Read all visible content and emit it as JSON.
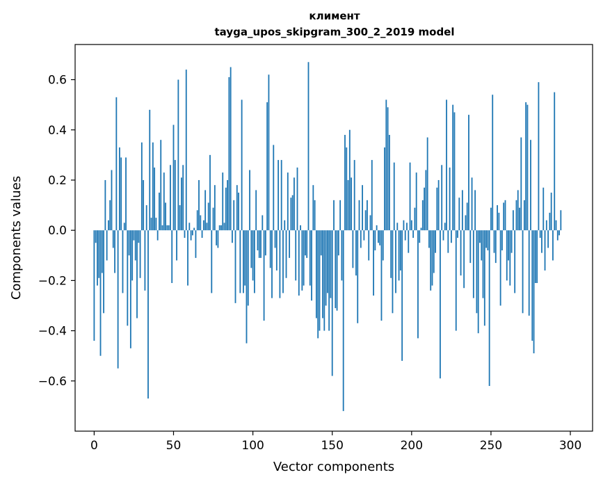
{
  "chart_data": {
    "type": "bar",
    "title": "климент",
    "subtitle": "tayga_upos_skipgram_300_2_2019 model",
    "xlabel": "Vector components",
    "ylabel": "Components values",
    "xlim": [
      -12,
      314
    ],
    "ylim": [
      -0.8,
      0.74
    ],
    "xticks": [
      0,
      50,
      100,
      150,
      200,
      250,
      300
    ],
    "xtick_labels": [
      "0",
      "50",
      "100",
      "150",
      "200",
      "250",
      "300"
    ],
    "yticks": [
      -0.6,
      -0.4,
      -0.2,
      0.0,
      0.2,
      0.4,
      0.6
    ],
    "ytick_labels": [
      "−0.6",
      "−0.4",
      "−0.2",
      "0.0",
      "0.2",
      "0.4",
      "0.6"
    ],
    "color": "#1f77b4",
    "values": [
      -0.44,
      -0.05,
      -0.22,
      -0.19,
      -0.5,
      -0.17,
      -0.33,
      0.2,
      -0.12,
      0.04,
      0.12,
      0.24,
      -0.07,
      -0.17,
      0.53,
      -0.55,
      0.33,
      0.29,
      -0.25,
      0.03,
      0.29,
      -0.38,
      -0.1,
      -0.47,
      -0.2,
      -0.04,
      -0.12,
      -0.35,
      -0.05,
      -0.19,
      0.35,
      0.2,
      -0.24,
      0.1,
      -0.67,
      0.48,
      0.05,
      0.35,
      0.25,
      0.05,
      -0.04,
      0.15,
      0.36,
      0.02,
      0.23,
      0.11,
      0.02,
      0.02,
      0.26,
      -0.21,
      0.42,
      0.28,
      -0.12,
      0.6,
      0.1,
      0.21,
      0.26,
      -0.03,
      0.64,
      -0.22,
      0.03,
      -0.04,
      -0.02,
      0.01,
      -0.11,
      0.08,
      0.2,
      0.06,
      -0.03,
      0.04,
      0.16,
      0.03,
      0.11,
      0.3,
      -0.25,
      0.09,
      0.18,
      -0.06,
      -0.07,
      0.02,
      0.02,
      0.23,
      0.03,
      0.17,
      0.2,
      0.61,
      0.65,
      -0.05,
      0.12,
      -0.29,
      0.18,
      0.15,
      -0.25,
      0.52,
      -0.25,
      -0.22,
      -0.45,
      -0.3,
      0.24,
      -0.15,
      -0.2,
      -0.25,
      0.16,
      -0.08,
      -0.11,
      -0.11,
      0.06,
      -0.36,
      -0.1,
      0.51,
      0.62,
      -0.15,
      -0.27,
      0.34,
      -0.07,
      -0.16,
      0.28,
      -0.27,
      0.28,
      -0.25,
      0.04,
      -0.19,
      0.23,
      -0.11,
      0.13,
      0.14,
      0.21,
      -0.2,
      0.25,
      -0.26,
      0.02,
      -0.24,
      -0.22,
      -0.1,
      -0.11,
      0.67,
      -0.22,
      -0.28,
      0.18,
      0.12,
      -0.35,
      -0.43,
      -0.4,
      -0.1,
      -0.35,
      -0.4,
      -0.3,
      -0.25,
      -0.4,
      -0.27,
      -0.58,
      0.12,
      -0.31,
      -0.32,
      -0.1,
      0.12,
      -0.2,
      -0.72,
      0.38,
      0.33,
      0.2,
      0.4,
      0.21,
      -0.15,
      0.28,
      -0.18,
      -0.37,
      0.12,
      -0.07,
      0.18,
      -0.04,
      0.08,
      0.12,
      -0.12,
      0.06,
      0.28,
      -0.26,
      -0.08,
      0.02,
      -0.05,
      -0.06,
      -0.36,
      -0.12,
      0.33,
      0.52,
      0.49,
      0.38,
      -0.19,
      -0.33,
      0.27,
      -0.25,
      0.03,
      -0.2,
      -0.16,
      -0.52,
      0.04,
      -0.04,
      0.03,
      -0.09,
      0.27,
      0.04,
      -0.03,
      0.09,
      0.23,
      -0.43,
      -0.05,
      0.01,
      0.12,
      0.17,
      0.24,
      0.37,
      -0.07,
      -0.24,
      -0.22,
      -0.17,
      -0.09,
      0.17,
      0.2,
      -0.59,
      0.26,
      -0.04,
      0.03,
      0.52,
      -0.09,
      0.25,
      -0.05,
      0.5,
      0.47,
      -0.4,
      -0.03,
      0.13,
      -0.18,
      0.16,
      -0.23,
      0.06,
      0.11,
      0.46,
      -0.13,
      0.21,
      -0.27,
      0.16,
      -0.33,
      -0.41,
      -0.05,
      -0.12,
      -0.27,
      -0.38,
      -0.07,
      -0.08,
      -0.62,
      0.09,
      0.54,
      -0.09,
      -0.13,
      0.1,
      0.07,
      -0.3,
      -0.08,
      0.11,
      0.12,
      -0.2,
      -0.12,
      -0.22,
      -0.09,
      0.08,
      -0.25,
      0.12,
      0.16,
      0.09,
      0.37,
      -0.33,
      0.12,
      0.51,
      0.5,
      -0.34,
      0.36,
      -0.44,
      -0.49,
      -0.21,
      -0.21,
      0.59,
      -0.03,
      -0.09,
      0.17,
      -0.16,
      0.04,
      -0.07,
      0.07,
      0.15,
      -0.12,
      0.55,
      0.04,
      -0.04,
      -0.02,
      0.08
    ]
  }
}
